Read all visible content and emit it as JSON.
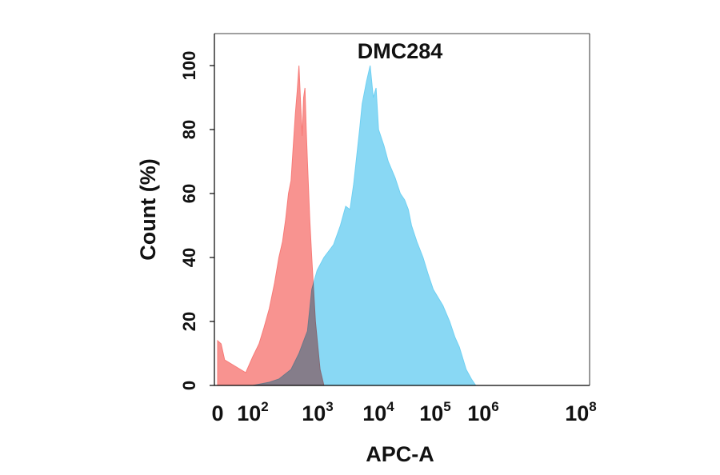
{
  "chart_data": {
    "type": "area",
    "title": "DMC284",
    "xlabel": "APC-A",
    "ylabel": "Count  (%)",
    "x_scale": "biexponential",
    "ylim": [
      0,
      110
    ],
    "y_ticks": [
      "0",
      "20",
      "40",
      "60",
      "80",
      "100"
    ],
    "x_ticks": [
      {
        "base": "0",
        "exp": ""
      },
      {
        "base": "10",
        "exp": "2"
      },
      {
        "base": "10",
        "exp": "3"
      },
      {
        "base": "10",
        "exp": "4"
      },
      {
        "base": "10",
        "exp": "5"
      },
      {
        "base": "10",
        "exp": "6"
      },
      {
        "base": "10",
        "exp": "8"
      }
    ],
    "grid": false,
    "series": [
      {
        "color": "#f77b78",
        "x": [
          0,
          10,
          20,
          50,
          80,
          100,
          130,
          160,
          200,
          250,
          300,
          350,
          400,
          450,
          500,
          550,
          600,
          650,
          700,
          750,
          800,
          850,
          900,
          950,
          1000,
          1100,
          1200,
          1400,
          1700,
          2000
        ],
        "values": [
          14,
          13,
          8,
          6,
          4,
          9,
          13,
          18,
          24,
          32,
          40,
          45,
          52,
          60,
          64,
          75,
          85,
          92,
          100,
          88,
          78,
          90,
          93,
          80,
          70,
          52,
          40,
          20,
          5,
          0
        ]
      },
      {
        "color": "#6fd0f2",
        "x": [
          0,
          100,
          200,
          300,
          500,
          700,
          900,
          1000,
          1200,
          1500,
          2000,
          3000,
          4000,
          5000,
          6000,
          7000,
          8000,
          9000,
          10000,
          12000,
          14000,
          16000,
          18000,
          20000,
          25000,
          30000,
          40000,
          50000,
          60000,
          70000,
          80000,
          100000,
          130000,
          160000,
          200000,
          300000,
          400000,
          500000,
          600000,
          800000,
          1000000,
          1200000
        ],
        "values": [
          0,
          0,
          1,
          2,
          5,
          10,
          15,
          17,
          30,
          36,
          40,
          44,
          50,
          56,
          55,
          63,
          72,
          80,
          88,
          95,
          100,
          90,
          93,
          80,
          75,
          70,
          65,
          60,
          58,
          55,
          50,
          45,
          40,
          35,
          30,
          25,
          20,
          15,
          12,
          5,
          2,
          0
        ]
      }
    ]
  }
}
